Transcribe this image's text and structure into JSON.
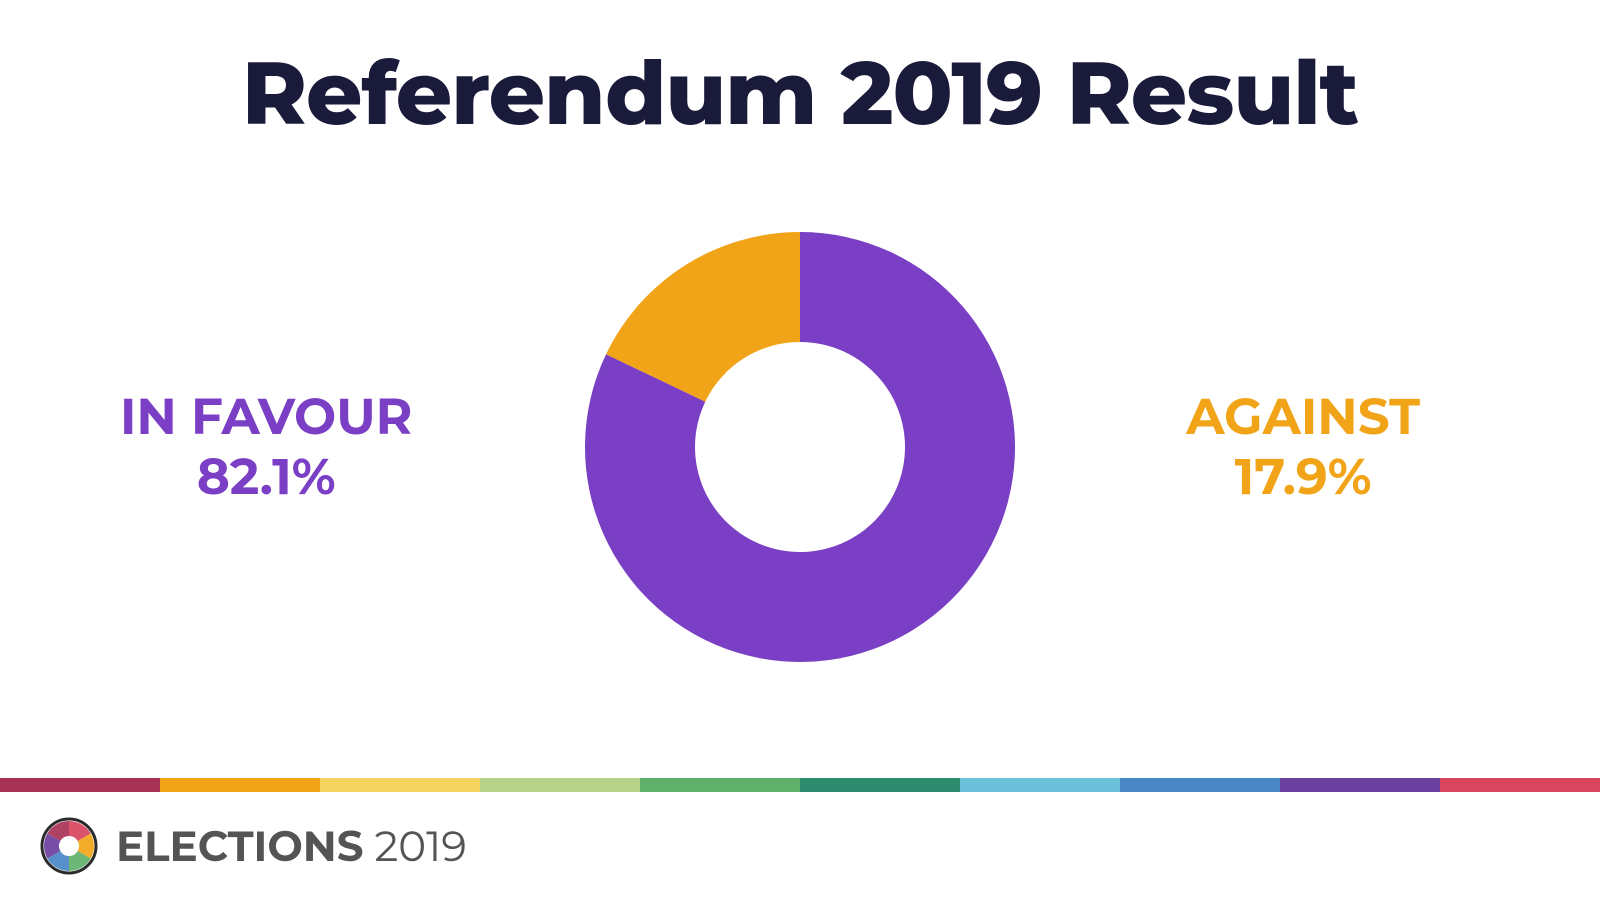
{
  "title": "Referendum 2019 Result",
  "title_fontsize": 88,
  "title_color": "#1a1a3a",
  "background_color": "#ffffff",
  "chart": {
    "type": "donut",
    "outer_radius": 215,
    "inner_radius": 105,
    "start_angle_deg": -90,
    "slices": [
      {
        "key": "in_favour",
        "value": 82.1,
        "color": "#7a3fc4"
      },
      {
        "key": "against",
        "value": 17.9,
        "color": "#f2a418"
      }
    ]
  },
  "left_label": {
    "text": "IN FAVOUR",
    "value": "82.1%",
    "color": "#7a3fc4",
    "fontsize": 50
  },
  "right_label": {
    "text": "AGAINST",
    "value": "17.9%",
    "color": "#f2a418",
    "fontsize": 50
  },
  "stripe_colors": [
    "#a83256",
    "#f2a418",
    "#f4d35e",
    "#b7d28a",
    "#5fb06a",
    "#2e8b6e",
    "#6cc0d9",
    "#4a87c7",
    "#6b3fa0",
    "#d9455f"
  ],
  "footer": {
    "brand_bold": "ELECTIONS",
    "brand_light": " 2019",
    "fontsize": 42,
    "text_color": "#545454",
    "logo_colors": [
      "#d9455f",
      "#f2a418",
      "#5fb06a",
      "#4a87c7",
      "#6b3fa0",
      "#a83256"
    ]
  }
}
